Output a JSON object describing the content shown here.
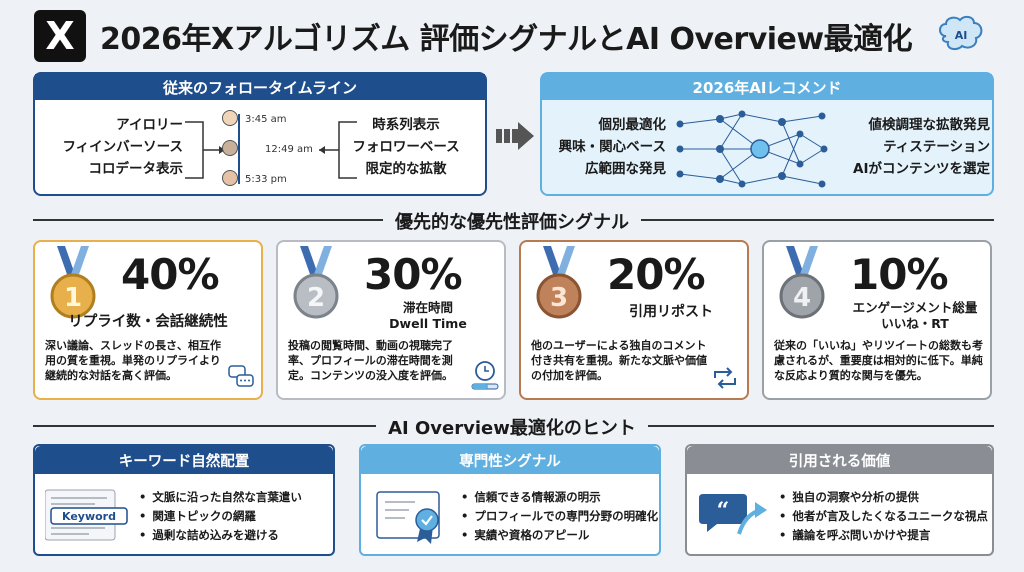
{
  "header": {
    "logo": "X",
    "title": "2026年Xアルゴリズム 評価シグナルとAI Overview最適化",
    "brain_label": "AI"
  },
  "left_panel": {
    "title": "従来のフォロータイムライン",
    "left_items": [
      "アイロリー",
      "フィインバーソース",
      "コロデータ表示"
    ],
    "timestamps": [
      "3:45 am",
      "12:49 am",
      "5:33 pm"
    ],
    "right_items": [
      "時系列表示",
      "フォロワーベース",
      "限定的な拡散"
    ]
  },
  "right_panel": {
    "title": "2026年AIレコメンド",
    "left_items": [
      "個別最適化",
      "興味・関心ベース",
      "広範囲な発見"
    ],
    "right_items": [
      "値検調理な拡散発見",
      "ティステーション",
      "AIがコンテンツを選定"
    ]
  },
  "signals_section": {
    "title": "優先的な優先性評価シグナル"
  },
  "cards": [
    {
      "rank": "1",
      "percent": "40%",
      "name": "リプライ数・会話継続性",
      "desc": "深い議論、スレッドの長さ、相互作用の質を重視。単発のリプライより継続的な対話を高く評価。",
      "color": "#e8b04a"
    },
    {
      "rank": "2",
      "percent": "30%",
      "name": "滞在時間\nDwell Time",
      "desc": "投稿の閲覧時間、動画の視聴完了率、プロフィールの滞在時間を測定。コンテンツの没入度を評価。",
      "color": "#a9aeb4"
    },
    {
      "rank": "3",
      "percent": "20%",
      "name": "引用リポスト",
      "desc": "他のユーザーによる独自のコメント付き共有を重視。新たな文脈や価値の付加を評価。",
      "color": "#b87a50"
    },
    {
      "rank": "4",
      "percent": "10%",
      "name": "エンゲージメント総量\nいいね・RT",
      "desc": "従来の「いいね」やリツイートの総数も考慮されるが、重要度は相対的に低下。単純な反応より質的な関与を優先。",
      "color": "#8a9098"
    }
  ],
  "hints_section": {
    "title": "AI Overview最適化のヒント"
  },
  "hints": [
    {
      "title": "キーワード自然配置",
      "icon_label": "Keyword",
      "items": [
        "文脈に沿った自然な言葉遣い",
        "関連トピックの網羅",
        "過剰な詰め込みを避ける"
      ],
      "color": "#1f4e8c"
    },
    {
      "title": "専門性シグナル",
      "items": [
        "信頼できる情報源の明示",
        "プロフィールでの専門分野の明確化",
        "実績や資格のアピール"
      ],
      "color": "#5fb0e0"
    },
    {
      "title": "引用される価値",
      "items": [
        "独自の洞察や分析の提供",
        "他者が言及したくなるユニークな視点",
        "議論を呼ぶ問いかけや提言"
      ],
      "color": "#8a8e94"
    }
  ]
}
